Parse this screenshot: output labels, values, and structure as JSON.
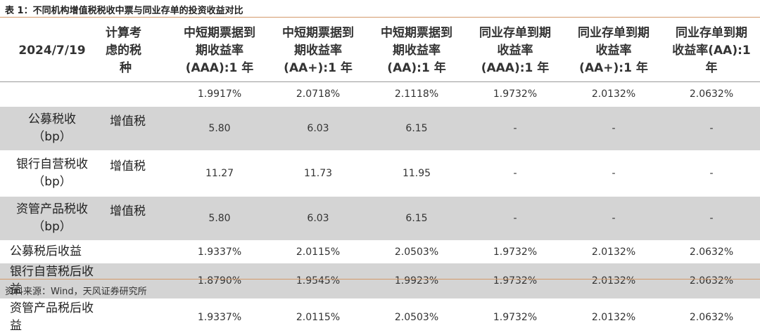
{
  "title": "表 1：不同机构增值税税收中票与同业存单的投资收益对比",
  "source": "资料来源：Wind，天风证券研究所",
  "table": {
    "header": {
      "date": "2024/7/19",
      "tax_col": "计算考虑的税种",
      "tax_col_lines": [
        "计算考",
        "虑的税",
        "种"
      ],
      "columns": [
        {
          "label": "中短期票据到期收益率(AAA):1年",
          "lines": [
            "中短期票据到",
            "期收益率",
            "(AAA):1 年"
          ]
        },
        {
          "label": "中短期票据到期收益率(AA+):1年",
          "lines": [
            "中短期票据到",
            "期收益率",
            "(AA+):1 年"
          ]
        },
        {
          "label": "中短期票据到期收益率(AA):1年",
          "lines": [
            "中短期票据到",
            "期收益率",
            "(AA):1 年"
          ]
        },
        {
          "label": "同业存单到期收益率(AAA):1年",
          "lines": [
            "同业存单到期",
            "收益率",
            "(AAA):1 年"
          ]
        },
        {
          "label": "同业存单到期收益率(AA+):1年",
          "lines": [
            "同业存单到期",
            "收益率",
            "(AA+):1 年"
          ]
        },
        {
          "label": "同业存单到期收益率(AA):1年",
          "lines": [
            "同业存单到期",
            "收益率(AA):1",
            "年"
          ]
        }
      ]
    },
    "rows": [
      {
        "label_lines": [
          ""
        ],
        "tax": "",
        "values": [
          "1.9917%",
          "2.0718%",
          "2.1118%",
          "1.9732%",
          "2.0132%",
          "2.0632%"
        ],
        "shaded": false
      },
      {
        "label_lines": [
          "公募税收",
          "（bp）"
        ],
        "tax": "增值税",
        "values": [
          "5.80",
          "6.03",
          "6.15",
          "-",
          "-",
          "-"
        ],
        "shaded": true
      },
      {
        "label_lines": [
          "银行自营税收",
          "（bp）"
        ],
        "tax": "增值税",
        "values": [
          "11.27",
          "11.73",
          "11.95",
          "-",
          "-",
          "-"
        ],
        "shaded": false
      },
      {
        "label_lines": [
          "资管产品税收",
          "（bp）"
        ],
        "tax": "增值税",
        "values": [
          "5.80",
          "6.03",
          "6.15",
          "-",
          "-",
          "-"
        ],
        "shaded": true
      },
      {
        "label_lines": [
          "公募税后收益"
        ],
        "tax": "",
        "values": [
          "1.9337%",
          "2.0115%",
          "2.0503%",
          "1.9732%",
          "2.0132%",
          "2.0632%"
        ],
        "shaded": false
      },
      {
        "label_lines": [
          "银行自营税后收益"
        ],
        "tax": "",
        "values": [
          "1.8790%",
          "1.9545%",
          "1.9923%",
          "1.9732%",
          "2.0132%",
          "2.0632%"
        ],
        "shaded": true
      },
      {
        "label_lines": [
          "资管产品税后收益"
        ],
        "tax": "",
        "values": [
          "1.9337%",
          "2.0115%",
          "2.0503%",
          "1.9732%",
          "2.0132%",
          "2.0632%"
        ],
        "shaded": false
      }
    ]
  }
}
